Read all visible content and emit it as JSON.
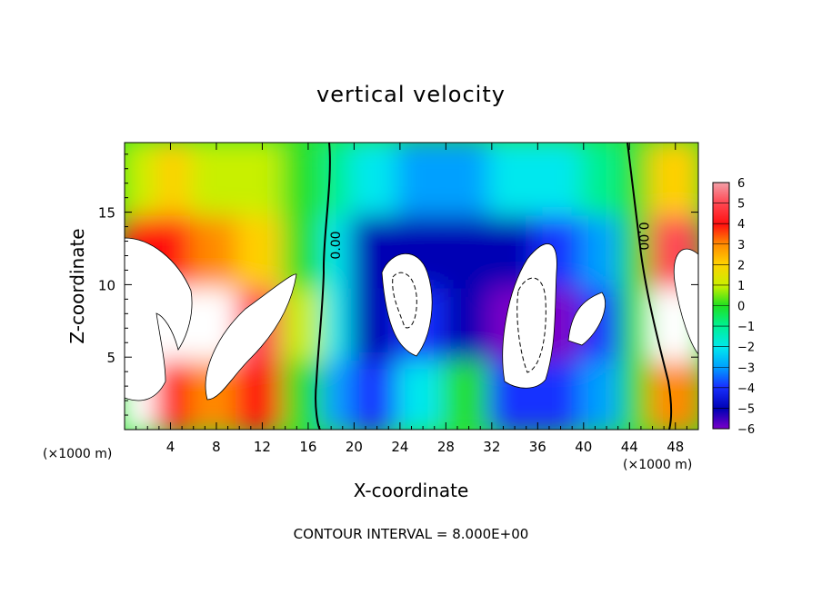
{
  "chart_data": {
    "type": "heatmap",
    "title": "vertical velocity",
    "xlabel": "X-coordinate",
    "ylabel": "Z-coordinate",
    "x_units": "(×1000 m)",
    "x_units_right": "(×1000 m)",
    "xlim": [
      0,
      50
    ],
    "ylim": [
      0,
      19.8
    ],
    "x_ticks": [
      "4",
      "8",
      "12",
      "16",
      "20",
      "24",
      "28",
      "32",
      "36",
      "40",
      "44",
      "48"
    ],
    "y_ticks": [
      "5",
      "10",
      "15"
    ],
    "colorbar": {
      "min": -6,
      "max": 6,
      "tick_labels": [
        "6",
        "5",
        "4",
        "3",
        "2",
        "1",
        "0",
        "−1",
        "−2",
        "−3",
        "−4",
        "−5",
        "−6"
      ]
    },
    "contour_labels": [
      "0.00",
      "0.00"
    ],
    "footer": "CONTOUR INTERVAL = 8.000E+00",
    "cells": [
      {
        "x0": 0,
        "x1": 3,
        "z0": 0,
        "z1": 5,
        "w": 6
      },
      {
        "x0": 0,
        "x1": 3,
        "z0": 5,
        "z1": 10,
        "w": 6
      },
      {
        "x0": 0,
        "x1": 3,
        "z0": 10,
        "z1": 15,
        "w": 4
      },
      {
        "x0": 0,
        "x1": 3,
        "z0": 15,
        "z1": 19.8,
        "w": 1
      },
      {
        "x0": 3,
        "x1": 6,
        "z0": 0,
        "z1": 5,
        "w": 4
      },
      {
        "x0": 3,
        "x1": 6,
        "z0": 5,
        "z1": 10,
        "w": 6
      },
      {
        "x0": 3,
        "x1": 6,
        "z0": 10,
        "z1": 15,
        "w": 4
      },
      {
        "x0": 3,
        "x1": 6,
        "z0": 15,
        "z1": 19.8,
        "w": 2
      },
      {
        "x0": 6,
        "x1": 10,
        "z0": 0,
        "z1": 5,
        "w": 3
      },
      {
        "x0": 6,
        "x1": 10,
        "z0": 5,
        "z1": 10,
        "w": 6
      },
      {
        "x0": 6,
        "x1": 10,
        "z0": 10,
        "z1": 15,
        "w": 3
      },
      {
        "x0": 6,
        "x1": 10,
        "z0": 15,
        "z1": 19.8,
        "w": 1
      },
      {
        "x0": 10,
        "x1": 14,
        "z0": 0,
        "z1": 5,
        "w": 4
      },
      {
        "x0": 10,
        "x1": 14,
        "z0": 5,
        "z1": 10,
        "w": 5
      },
      {
        "x0": 10,
        "x1": 14,
        "z0": 10,
        "z1": 15,
        "w": 2
      },
      {
        "x0": 10,
        "x1": 14,
        "z0": 15,
        "z1": 19.8,
        "w": 1
      },
      {
        "x0": 14,
        "x1": 17.5,
        "z0": 0,
        "z1": 5,
        "w": 0
      },
      {
        "x0": 14,
        "x1": 17.5,
        "z0": 5,
        "z1": 10,
        "w": 1
      },
      {
        "x0": 14,
        "x1": 17.5,
        "z0": 10,
        "z1": 15,
        "w": 0
      },
      {
        "x0": 14,
        "x1": 17.5,
        "z0": 15,
        "z1": 19.8,
        "w": 0
      },
      {
        "x0": 17.5,
        "x1": 20,
        "z0": 0,
        "z1": 5,
        "w": -3
      },
      {
        "x0": 17.5,
        "x1": 20,
        "z0": 5,
        "z1": 10,
        "w": -2
      },
      {
        "x0": 17.5,
        "x1": 20,
        "z0": 10,
        "z1": 15,
        "w": -2
      },
      {
        "x0": 17.5,
        "x1": 20,
        "z0": 15,
        "z1": 19.8,
        "w": -1
      },
      {
        "x0": 20,
        "x1": 24,
        "z0": 0,
        "z1": 5,
        "w": -4
      },
      {
        "x0": 20,
        "x1": 24,
        "z0": 5,
        "z1": 10,
        "w": -5
      },
      {
        "x0": 20,
        "x1": 24,
        "z0": 10,
        "z1": 15,
        "w": -5
      },
      {
        "x0": 20,
        "x1": 24,
        "z0": 15,
        "z1": 19.8,
        "w": -2
      },
      {
        "x0": 24,
        "x1": 28,
        "z0": 0,
        "z1": 5,
        "w": -2
      },
      {
        "x0": 24,
        "x1": 28,
        "z0": 5,
        "z1": 10,
        "w": -4
      },
      {
        "x0": 24,
        "x1": 28,
        "z0": 10,
        "z1": 15,
        "w": -5
      },
      {
        "x0": 24,
        "x1": 28,
        "z0": 15,
        "z1": 19.8,
        "w": -3
      },
      {
        "x0": 28,
        "x1": 32,
        "z0": 0,
        "z1": 5,
        "w": 0
      },
      {
        "x0": 28,
        "x1": 32,
        "z0": 5,
        "z1": 10,
        "w": -5
      },
      {
        "x0": 28,
        "x1": 32,
        "z0": 10,
        "z1": 15,
        "w": -5
      },
      {
        "x0": 28,
        "x1": 32,
        "z0": 15,
        "z1": 19.8,
        "w": -3
      },
      {
        "x0": 32,
        "x1": 36,
        "z0": 0,
        "z1": 5,
        "w": -4
      },
      {
        "x0": 32,
        "x1": 36,
        "z0": 5,
        "z1": 10,
        "w": -6
      },
      {
        "x0": 32,
        "x1": 36,
        "z0": 10,
        "z1": 15,
        "w": -5
      },
      {
        "x0": 32,
        "x1": 36,
        "z0": 15,
        "z1": 19.8,
        "w": -2
      },
      {
        "x0": 36,
        "x1": 40,
        "z0": 0,
        "z1": 5,
        "w": -4
      },
      {
        "x0": 36,
        "x1": 40,
        "z0": 5,
        "z1": 10,
        "w": -6
      },
      {
        "x0": 36,
        "x1": 40,
        "z0": 10,
        "z1": 15,
        "w": -4
      },
      {
        "x0": 36,
        "x1": 40,
        "z0": 15,
        "z1": 19.8,
        "w": -2
      },
      {
        "x0": 40,
        "x1": 43.5,
        "z0": 0,
        "z1": 5,
        "w": -3
      },
      {
        "x0": 40,
        "x1": 43.5,
        "z0": 5,
        "z1": 10,
        "w": -4
      },
      {
        "x0": 40,
        "x1": 43.5,
        "z0": 10,
        "z1": 15,
        "w": -3
      },
      {
        "x0": 40,
        "x1": 43.5,
        "z0": 15,
        "z1": 19.8,
        "w": -1
      },
      {
        "x0": 43.5,
        "x1": 46,
        "z0": 0,
        "z1": 5,
        "w": 0
      },
      {
        "x0": 43.5,
        "x1": 46,
        "z0": 5,
        "z1": 10,
        "w": 0
      },
      {
        "x0": 43.5,
        "x1": 46,
        "z0": 10,
        "z1": 15,
        "w": 0
      },
      {
        "x0": 43.5,
        "x1": 46,
        "z0": 15,
        "z1": 19.8,
        "w": 0
      },
      {
        "x0": 46,
        "x1": 50,
        "z0": 0,
        "z1": 5,
        "w": 3
      },
      {
        "x0": 46,
        "x1": 50,
        "z0": 5,
        "z1": 10,
        "w": 6
      },
      {
        "x0": 46,
        "x1": 50,
        "z0": 10,
        "z1": 15,
        "w": 5
      },
      {
        "x0": 46,
        "x1": 50,
        "z0": 15,
        "z1": 19.8,
        "w": 2
      }
    ]
  }
}
